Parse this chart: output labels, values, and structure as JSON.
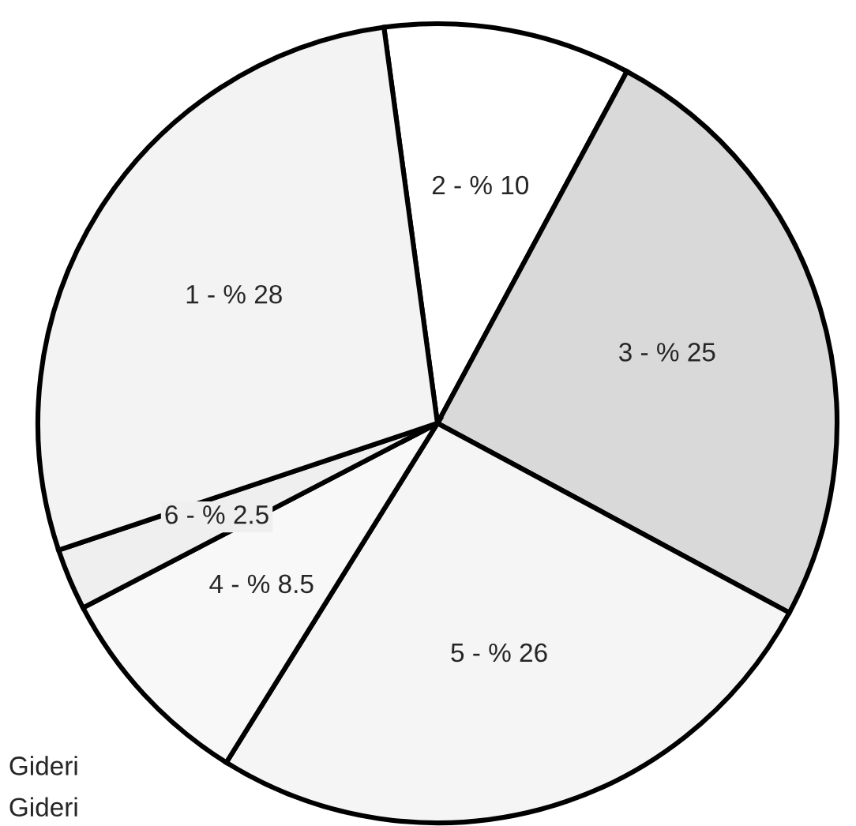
{
  "chart_data": {
    "type": "pie",
    "categories": [
      "2 - % 10",
      "3 - % 25",
      "5 - % 26",
      "4 - % 8.5",
      "6 - % 2.5",
      "1 - % 28"
    ],
    "values": [
      10,
      25,
      26,
      8.5,
      2.5,
      28
    ],
    "colors": [
      "#ffffff",
      "#d9d9d9",
      "#f5f5f5",
      "#f8f8f8",
      "#efefef",
      "#f3f3f3"
    ],
    "annotations": [
      "Gideri",
      "Gideri"
    ],
    "legend": false
  }
}
